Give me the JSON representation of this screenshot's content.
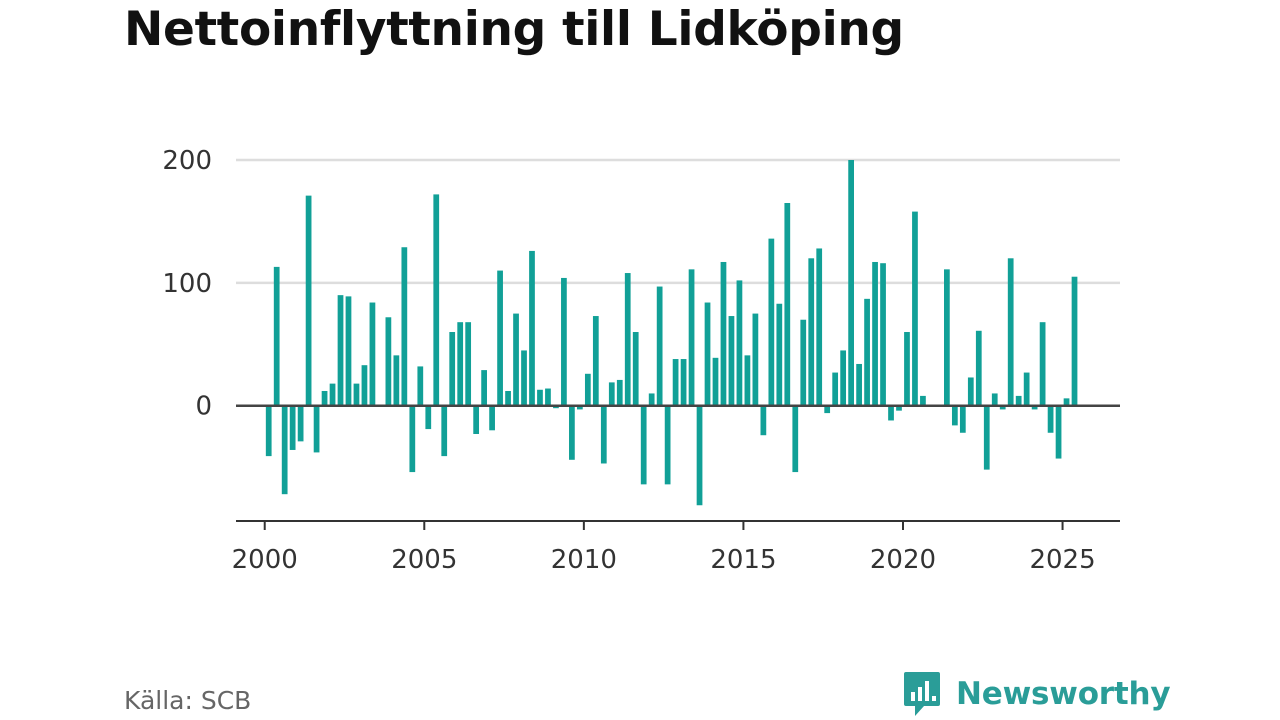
{
  "title": "Nettoinflyttning till Lidköping",
  "source": "Källa: SCB",
  "brand": {
    "name": "Newsworthy",
    "icon": "newsworthy-logo-icon",
    "color": "#2a9d98"
  },
  "colors": {
    "bar": "#11a097",
    "grid": "#dddddd",
    "zero_line": "#444444",
    "axis": "#333333",
    "label": "#333333"
  },
  "chart_data": {
    "type": "bar",
    "title": "Nettoinflyttning till Lidköping",
    "xlabel": "",
    "ylabel": "",
    "ylim": [
      -93,
      200
    ],
    "xlim": [
      1999.1,
      2026.8
    ],
    "yticks": [
      0,
      100,
      200
    ],
    "xticks": [
      2000,
      2005,
      2010,
      2015,
      2020,
      2025
    ],
    "grid": true,
    "legend": "none",
    "series": [
      {
        "quarters": [
          {
            "x": 2000.125,
            "value": -41
          },
          {
            "x": 2000.375,
            "value": 113
          },
          {
            "x": 2000.625,
            "value": -72
          },
          {
            "x": 2000.875,
            "value": -36
          },
          {
            "x": 2001.125,
            "value": -29
          },
          {
            "x": 2001.375,
            "value": 171
          },
          {
            "x": 2001.625,
            "value": -38
          },
          {
            "x": 2001.875,
            "value": 12
          },
          {
            "x": 2002.125,
            "value": 18
          },
          {
            "x": 2002.375,
            "value": 90
          },
          {
            "x": 2002.625,
            "value": 89
          },
          {
            "x": 2002.875,
            "value": 18
          },
          {
            "x": 2003.125,
            "value": 33
          },
          {
            "x": 2003.375,
            "value": 84
          },
          {
            "x": 2003.625,
            "value": 0
          },
          {
            "x": 2003.875,
            "value": 72
          },
          {
            "x": 2004.125,
            "value": 41
          },
          {
            "x": 2004.375,
            "value": 129
          },
          {
            "x": 2004.625,
            "value": -54
          },
          {
            "x": 2004.875,
            "value": 32
          },
          {
            "x": 2005.125,
            "value": -19
          },
          {
            "x": 2005.375,
            "value": 172
          },
          {
            "x": 2005.625,
            "value": -41
          },
          {
            "x": 2005.875,
            "value": 60
          },
          {
            "x": 2006.125,
            "value": 68
          },
          {
            "x": 2006.375,
            "value": 68
          },
          {
            "x": 2006.625,
            "value": -23
          },
          {
            "x": 2006.875,
            "value": 29
          },
          {
            "x": 2007.125,
            "value": -20
          },
          {
            "x": 2007.375,
            "value": 110
          },
          {
            "x": 2007.625,
            "value": 12
          },
          {
            "x": 2007.875,
            "value": 75
          },
          {
            "x": 2008.125,
            "value": 45
          },
          {
            "x": 2008.375,
            "value": 126
          },
          {
            "x": 2008.625,
            "value": 13
          },
          {
            "x": 2008.875,
            "value": 14
          },
          {
            "x": 2009.125,
            "value": -2
          },
          {
            "x": 2009.375,
            "value": 104
          },
          {
            "x": 2009.625,
            "value": -44
          },
          {
            "x": 2009.875,
            "value": -3
          },
          {
            "x": 2010.125,
            "value": 26
          },
          {
            "x": 2010.375,
            "value": 73
          },
          {
            "x": 2010.625,
            "value": -47
          },
          {
            "x": 2010.875,
            "value": 19
          },
          {
            "x": 2011.125,
            "value": 21
          },
          {
            "x": 2011.375,
            "value": 108
          },
          {
            "x": 2011.625,
            "value": 60
          },
          {
            "x": 2011.875,
            "value": -64
          },
          {
            "x": 2012.125,
            "value": 10
          },
          {
            "x": 2012.375,
            "value": 97
          },
          {
            "x": 2012.625,
            "value": -64
          },
          {
            "x": 2012.875,
            "value": 38
          },
          {
            "x": 2013.125,
            "value": 38
          },
          {
            "x": 2013.375,
            "value": 111
          },
          {
            "x": 2013.625,
            "value": -81
          },
          {
            "x": 2013.875,
            "value": 84
          },
          {
            "x": 2014.125,
            "value": 39
          },
          {
            "x": 2014.375,
            "value": 117
          },
          {
            "x": 2014.625,
            "value": 73
          },
          {
            "x": 2014.875,
            "value": 102
          },
          {
            "x": 2015.125,
            "value": 41
          },
          {
            "x": 2015.375,
            "value": 75
          },
          {
            "x": 2015.625,
            "value": -24
          },
          {
            "x": 2015.875,
            "value": 136
          },
          {
            "x": 2016.125,
            "value": 83
          },
          {
            "x": 2016.375,
            "value": 165
          },
          {
            "x": 2016.625,
            "value": -54
          },
          {
            "x": 2016.875,
            "value": 70
          },
          {
            "x": 2017.125,
            "value": 120
          },
          {
            "x": 2017.375,
            "value": 128
          },
          {
            "x": 2017.625,
            "value": -6
          },
          {
            "x": 2017.875,
            "value": 27
          },
          {
            "x": 2018.125,
            "value": 45
          },
          {
            "x": 2018.375,
            "value": 200
          },
          {
            "x": 2018.625,
            "value": 34
          },
          {
            "x": 2018.875,
            "value": 87
          },
          {
            "x": 2019.125,
            "value": 117
          },
          {
            "x": 2019.375,
            "value": 116
          },
          {
            "x": 2019.625,
            "value": -12
          },
          {
            "x": 2019.875,
            "value": -4
          },
          {
            "x": 2020.125,
            "value": 60
          },
          {
            "x": 2020.375,
            "value": 158
          },
          {
            "x": 2020.625,
            "value": 8
          },
          {
            "x": 2020.875,
            "value": 0
          },
          {
            "x": 2021.125,
            "value": 0
          },
          {
            "x": 2021.375,
            "value": 111
          },
          {
            "x": 2021.625,
            "value": -16
          },
          {
            "x": 2021.875,
            "value": -22
          },
          {
            "x": 2022.125,
            "value": 23
          },
          {
            "x": 2022.375,
            "value": 61
          },
          {
            "x": 2022.625,
            "value": -52
          },
          {
            "x": 2022.875,
            "value": 10
          },
          {
            "x": 2023.125,
            "value": -3
          },
          {
            "x": 2023.375,
            "value": 120
          },
          {
            "x": 2023.625,
            "value": 8
          },
          {
            "x": 2023.875,
            "value": 27
          },
          {
            "x": 2024.125,
            "value": -3
          },
          {
            "x": 2024.375,
            "value": 68
          },
          {
            "x": 2024.625,
            "value": -22
          },
          {
            "x": 2024.875,
            "value": -43
          },
          {
            "x": 2025.125,
            "value": 6
          },
          {
            "x": 2025.375,
            "value": 105
          }
        ]
      }
    ]
  }
}
